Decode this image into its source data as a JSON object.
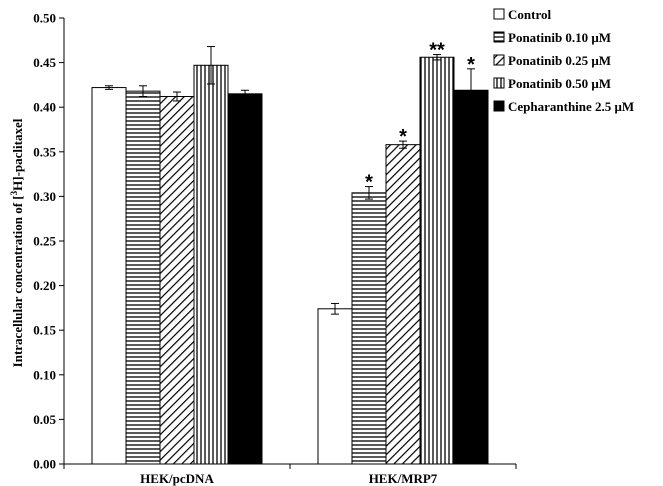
{
  "chart_data": {
    "type": "bar",
    "categories": [
      "HEK/pcDNA",
      "HEK/MRP7"
    ],
    "ylabel_prefix": "Intracellular concentration of [",
    "ylabel_sup": "3",
    "ylabel_suffix": "H]-paclitaxel",
    "ylim": [
      0,
      0.5
    ],
    "yticks": [
      "0.00",
      "0.05",
      "0.10",
      "0.15",
      "0.20",
      "0.25",
      "0.30",
      "0.35",
      "0.40",
      "0.45",
      "0.50"
    ],
    "legend_position": "right",
    "grid": false,
    "series": [
      {
        "name": "Control",
        "pattern": "white",
        "values": [
          0.422,
          0.174
        ],
        "errors": [
          0.002,
          0.006
        ],
        "sig": [
          "",
          ""
        ]
      },
      {
        "name": "Ponatinib 0.10 μM",
        "pattern": "horizontal",
        "values": [
          0.418,
          0.304
        ],
        "errors": [
          0.006,
          0.007
        ],
        "sig": [
          "",
          "*"
        ]
      },
      {
        "name": "Ponatinib 0.25 μM",
        "pattern": "diagonal",
        "values": [
          0.412,
          0.358
        ],
        "errors": [
          0.005,
          0.004
        ],
        "sig": [
          "",
          "*"
        ]
      },
      {
        "name": "Ponatinib 0.50 μM",
        "pattern": "vertical",
        "values": [
          0.447,
          0.456
        ],
        "errors": [
          0.021,
          0.003
        ],
        "sig": [
          "",
          "**"
        ]
      },
      {
        "name": "Cepharanthine 2.5 μM",
        "pattern": "black",
        "values": [
          0.415,
          0.419
        ],
        "errors": [
          0.004,
          0.024
        ],
        "sig": [
          "",
          "*"
        ]
      }
    ]
  }
}
